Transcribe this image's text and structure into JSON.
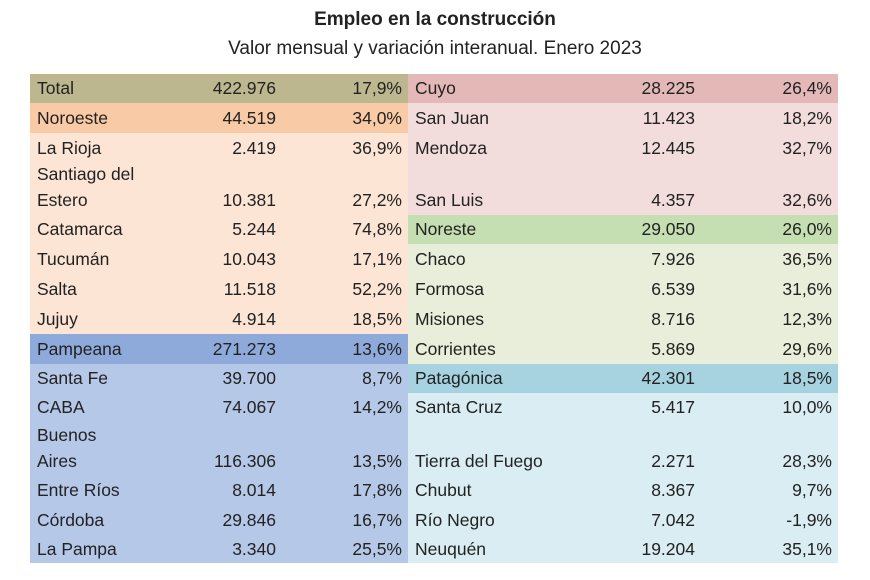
{
  "title": "Empleo en la construcción",
  "subtitle": "Valor mensual y variación interanual. Enero 2023",
  "colors": {
    "total": "#bdb790",
    "noroeste_header": "#f8caa5",
    "noroeste_body": "#fde5d5",
    "pampeana_header": "#8eaadb",
    "pampeana_body": "#b6c8e8",
    "cuyo_header": "#e5b8b8",
    "cuyo_body": "#f2dcdc",
    "noreste_header": "#c6dfb2",
    "noreste_body": "#e8eed9",
    "patagonica_header": "#a6d3df",
    "patagonica_body": "#d9edf3"
  },
  "left": [
    {
      "name": "Total",
      "value": "422.976",
      "pct": "17,9%",
      "color": "total"
    },
    {
      "name": "Noroeste",
      "value": "44.519",
      "pct": "34,0%",
      "color": "noroeste_header"
    },
    {
      "name": "La Rioja",
      "value": "2.419",
      "pct": "36,9%",
      "color": "noroeste_body"
    },
    {
      "name": "Santiago del",
      "value": "",
      "pct": "",
      "color": "noroeste_body"
    },
    {
      "name": "Estero",
      "value": "10.381",
      "pct": "27,2%",
      "color": "noroeste_body"
    },
    {
      "name": "Catamarca",
      "value": "5.244",
      "pct": "74,8%",
      "color": "noroeste_body"
    },
    {
      "name": "Tucumán",
      "value": "10.043",
      "pct": "17,1%",
      "color": "noroeste_body"
    },
    {
      "name": "Salta",
      "value": "11.518",
      "pct": "52,2%",
      "color": "noroeste_body"
    },
    {
      "name": "Jujuy",
      "value": "4.914",
      "pct": "18,5%",
      "color": "noroeste_body"
    },
    {
      "name": "Pampeana",
      "value": "271.273",
      "pct": "13,6%",
      "color": "pampeana_header"
    },
    {
      "name": "Santa Fe",
      "value": "39.700",
      "pct": "8,7%",
      "color": "pampeana_body"
    },
    {
      "name": "CABA",
      "value": "74.067",
      "pct": "14,2%",
      "color": "pampeana_body"
    },
    {
      "name": "Buenos",
      "value": "",
      "pct": "",
      "color": "pampeana_body"
    },
    {
      "name": "Aires",
      "value": "116.306",
      "pct": "13,5%",
      "color": "pampeana_body"
    },
    {
      "name": "Entre Ríos",
      "value": "8.014",
      "pct": "17,8%",
      "color": "pampeana_body"
    },
    {
      "name": "Córdoba",
      "value": "29.846",
      "pct": "16,7%",
      "color": "pampeana_body"
    },
    {
      "name": "La Pampa",
      "value": "3.340",
      "pct": "25,5%",
      "color": "pampeana_body"
    }
  ],
  "right": [
    {
      "name": "Cuyo",
      "value": "28.225",
      "pct": "26,4%",
      "color": "cuyo_header"
    },
    {
      "name": "San Juan",
      "value": "11.423",
      "pct": "18,2%",
      "color": "cuyo_body"
    },
    {
      "name": "Mendoza",
      "value": "12.445",
      "pct": "32,7%",
      "color": "cuyo_body"
    },
    {
      "name": "",
      "value": "",
      "pct": "",
      "color": "cuyo_body"
    },
    {
      "name": "San Luis",
      "value": "4.357",
      "pct": "32,6%",
      "color": "cuyo_body"
    },
    {
      "name": "Noreste",
      "value": "29.050",
      "pct": "26,0%",
      "color": "noreste_header"
    },
    {
      "name": "Chaco",
      "value": "7.926",
      "pct": "36,5%",
      "color": "noreste_body"
    },
    {
      "name": "Formosa",
      "value": "6.539",
      "pct": "31,6%",
      "color": "noreste_body"
    },
    {
      "name": "Misiones",
      "value": "8.716",
      "pct": "12,3%",
      "color": "noreste_body"
    },
    {
      "name": "Corrientes",
      "value": "5.869",
      "pct": "29,6%",
      "color": "noreste_body"
    },
    {
      "name": "Patagónica",
      "value": "42.301",
      "pct": "18,5%",
      "color": "patagonica_header"
    },
    {
      "name": "Santa Cruz",
      "value": "5.417",
      "pct": "10,0%",
      "color": "patagonica_body"
    },
    {
      "name": "",
      "value": "",
      "pct": "",
      "color": "patagonica_body"
    },
    {
      "name": "Tierra del Fuego",
      "value": "2.271",
      "pct": "28,3%",
      "color": "patagonica_body"
    },
    {
      "name": "Chubut",
      "value": "8.367",
      "pct": "9,7%",
      "color": "patagonica_body"
    },
    {
      "name": "Río Negro",
      "value": "7.042",
      "pct": "-1,9%",
      "color": "patagonica_body"
    },
    {
      "name": "Neuquén",
      "value": "19.204",
      "pct": "35,1%",
      "color": "patagonica_body"
    }
  ]
}
